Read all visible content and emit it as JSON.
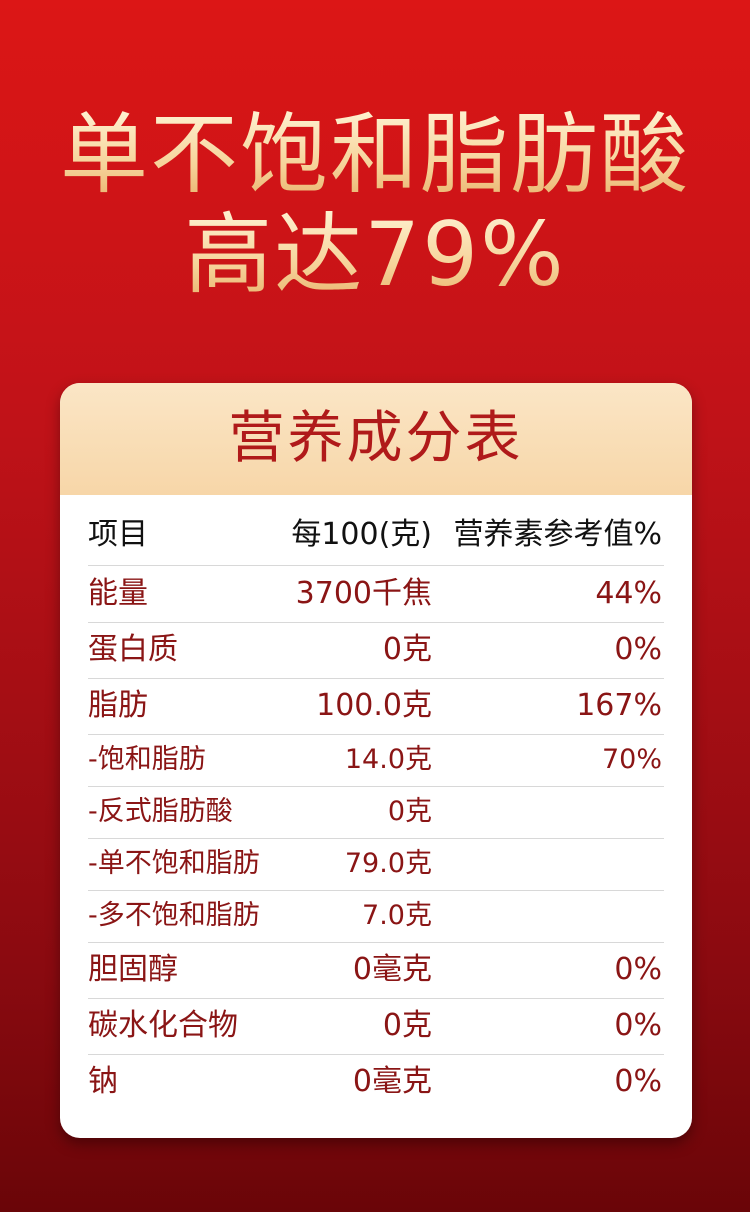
{
  "headline": {
    "lines": [
      "单不饱和脂肪酸",
      "高达79%"
    ]
  },
  "table": {
    "title": "营养成分表",
    "header": [
      "项目",
      "每100(克)",
      "营养素参考值%"
    ],
    "rows": [
      [
        "能量",
        "3700千焦",
        "44%"
      ],
      [
        "蛋白质",
        "0克",
        "0%"
      ],
      [
        "脂肪",
        "100.0克",
        "167%"
      ],
      [
        "-饱和脂肪",
        "14.0克",
        "70%"
      ],
      [
        "-反式脂肪酸",
        "0克",
        null
      ],
      [
        "-单不饱和脂肪",
        "79.0克",
        null
      ],
      [
        "-多不饱和脂肪",
        "7.0克",
        null
      ],
      [
        "胆固醇",
        "0毫克",
        "0%"
      ],
      [
        "碳水化合物",
        "0克",
        "0%"
      ],
      [
        "钠",
        "0毫克",
        "0%"
      ]
    ]
  }
}
